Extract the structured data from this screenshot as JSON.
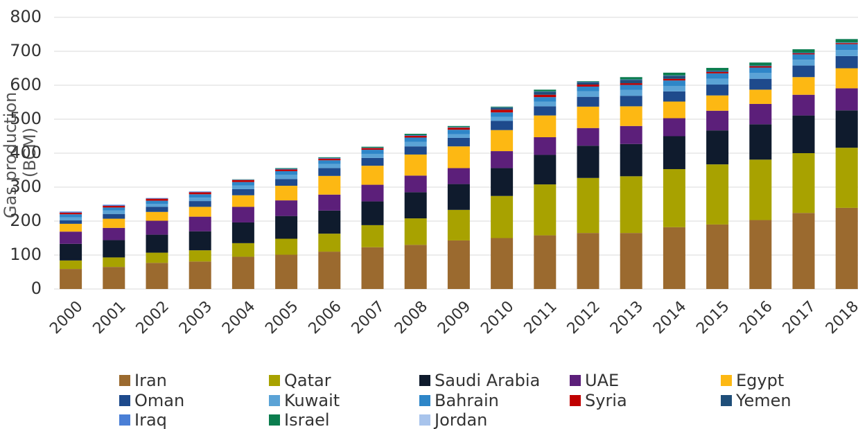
{
  "chart_data": {
    "type": "stacked_bar",
    "y_label": [
      "Gas production",
      "(BCM)"
    ],
    "categories": [
      "2000",
      "2001",
      "2002",
      "2003",
      "2004",
      "2005",
      "2006",
      "2007",
      "2008",
      "2009",
      "2010",
      "2011",
      "2012",
      "2013",
      "2014",
      "2015",
      "2016",
      "2017",
      "2018"
    ],
    "ylim": [
      0,
      800
    ],
    "yticks": [
      0,
      100,
      200,
      300,
      400,
      500,
      600,
      700,
      800
    ],
    "grid": true,
    "legend": "bottom",
    "series": [
      {
        "name": "Iran",
        "color": "#9b6a2f",
        "values": [
          59,
          65,
          77,
          81,
          95,
          101,
          110,
          123,
          130,
          143,
          150,
          158,
          165,
          165,
          182,
          190,
          203,
          224,
          239
        ]
      },
      {
        "name": "Qatar",
        "color": "#a8a200",
        "values": [
          25,
          28,
          30,
          33,
          40,
          47,
          53,
          65,
          78,
          90,
          124,
          150,
          162,
          167,
          171,
          177,
          178,
          176,
          177
        ]
      },
      {
        "name": "Saudi Arabia",
        "color": "#0f1b2d",
        "values": [
          49,
          51,
          53,
          56,
          61,
          67,
          68,
          70,
          77,
          76,
          82,
          87,
          95,
          95,
          97,
          100,
          104,
          111,
          110
        ]
      },
      {
        "name": "UAE",
        "color": "#5c1f7a",
        "values": [
          36,
          36,
          41,
          43,
          46,
          46,
          47,
          49,
          49,
          47,
          50,
          52,
          52,
          53,
          53,
          58,
          60,
          61,
          65
        ]
      },
      {
        "name": "Egypt",
        "color": "#fdb813",
        "values": [
          23,
          27,
          26,
          29,
          34,
          43,
          55,
          56,
          62,
          64,
          62,
          64,
          63,
          58,
          49,
          45,
          42,
          52,
          59
        ]
      },
      {
        "name": "Oman",
        "color": "#1e4a8c",
        "values": [
          10,
          14,
          15,
          17,
          18,
          20,
          23,
          23,
          24,
          25,
          27,
          27,
          29,
          31,
          30,
          32,
          32,
          34,
          36
        ]
      },
      {
        "name": "Kuwait",
        "color": "#5ba3d6",
        "values": [
          9,
          10,
          9,
          10,
          11,
          12,
          12,
          12,
          13,
          11,
          12,
          14,
          16,
          17,
          16,
          17,
          17,
          17,
          18
        ]
      },
      {
        "name": "Bahrain",
        "color": "#2e86c8",
        "values": [
          9,
          9,
          9,
          10,
          10,
          11,
          11,
          12,
          13,
          13,
          13,
          13,
          14,
          15,
          16,
          16,
          16,
          16,
          17
        ]
      },
      {
        "name": "Syria",
        "color": "#c00000",
        "values": [
          5,
          5,
          6,
          6,
          6,
          5,
          5,
          5,
          5,
          6,
          8,
          7,
          6,
          5,
          5,
          4,
          4,
          3,
          3
        ]
      },
      {
        "name": "Yemen",
        "color": "#1f4e79",
        "values": [
          0,
          0,
          0,
          0,
          0,
          0,
          0,
          0,
          0,
          1,
          6,
          9,
          7,
          10,
          9,
          3,
          1,
          1,
          1
        ]
      },
      {
        "name": "Iraq",
        "color": "#4a7fd6",
        "values": [
          3,
          3,
          2,
          2,
          1,
          2,
          2,
          1,
          2,
          1,
          1,
          1,
          1,
          1,
          1,
          1,
          1,
          1,
          1
        ]
      },
      {
        "name": "Israel",
        "color": "#0b7d4e",
        "values": [
          0,
          0,
          0,
          0,
          1,
          2,
          2,
          3,
          4,
          3,
          2,
          5,
          2,
          7,
          8,
          8,
          9,
          10,
          10
        ]
      },
      {
        "name": "Jordan",
        "color": "#a8c4ec",
        "values": [
          0.3,
          0.3,
          0.3,
          0.3,
          0.3,
          0.3,
          0.3,
          0.3,
          0.3,
          0.3,
          0.3,
          0.3,
          0.3,
          0.3,
          0.3,
          0.3,
          0.3,
          0.3,
          0.3
        ]
      }
    ]
  }
}
